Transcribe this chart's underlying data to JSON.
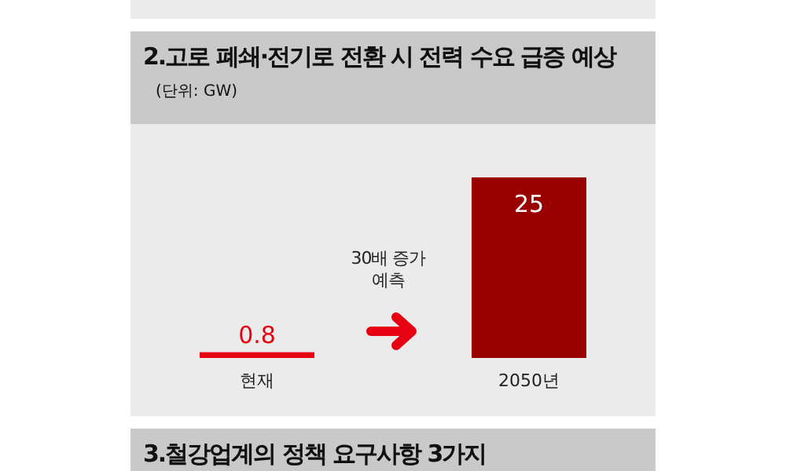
{
  "chart_data": {
    "type": "bar",
    "title": "2.고로 폐쇄·전기로 전환 시 전력 수요 급증 예상",
    "subtitle": "(단위: GW)",
    "categories": [
      "현재",
      "2050년"
    ],
    "values": [
      0.8,
      25
    ],
    "colors": [
      "#e60012",
      "#990000"
    ],
    "data_labels": true,
    "annotations": [
      "30배 증가 예측",
      "3.철강업계의 정책 요구사항 3가지"
    ]
  }
}
